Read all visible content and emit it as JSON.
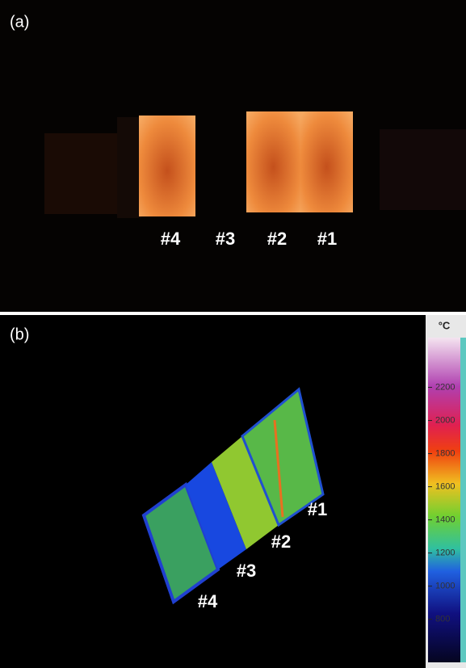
{
  "panel_a": {
    "label": "(a)",
    "samples": [
      "#4",
      "#3",
      "#2",
      "#1"
    ]
  },
  "panel_b": {
    "label": "(b)",
    "samples": [
      "#4",
      "#3",
      "#2",
      "#1"
    ]
  },
  "colorbar": {
    "unit": "°C",
    "lim": [
      540,
      2500
    ],
    "ticks": [
      800,
      1000,
      1200,
      1400,
      1600,
      1800,
      2000,
      2200
    ]
  }
}
